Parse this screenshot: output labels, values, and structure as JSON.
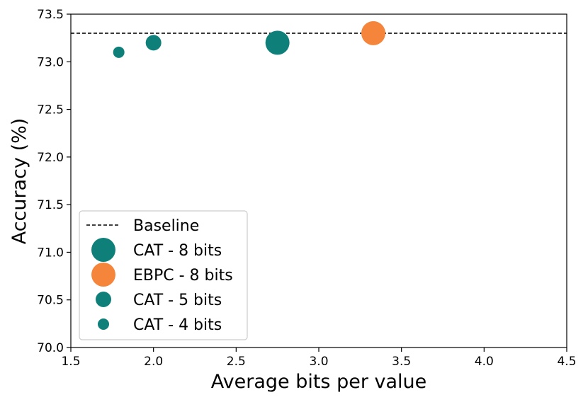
{
  "chart_data": {
    "type": "scatter",
    "title": "",
    "xlabel": "Average bits per value",
    "ylabel": "Accuracy (%)",
    "xlim": [
      1.5,
      4.5
    ],
    "ylim": [
      70.0,
      73.5
    ],
    "xticks": [
      1.5,
      2.0,
      2.5,
      3.0,
      3.5,
      4.0,
      4.5
    ],
    "xtick_labels": [
      "1.5",
      "2.0",
      "2.5",
      "3.0",
      "3.5",
      "4.0",
      "4.5"
    ],
    "yticks": [
      70.0,
      70.5,
      71.0,
      71.5,
      72.0,
      72.5,
      73.0,
      73.5
    ],
    "ytick_labels": [
      "70.0",
      "70.5",
      "71.0",
      "71.5",
      "72.0",
      "72.5",
      "73.0",
      "73.5"
    ],
    "grid": false,
    "baseline": {
      "name": "Baseline",
      "value": 73.3,
      "style": "dashed",
      "color": "#000000"
    },
    "series": [
      {
        "name": "CAT - 8 bits",
        "color": "#0f7f7a",
        "marker_size": "large",
        "points": [
          {
            "x": 2.75,
            "y": 73.2
          }
        ]
      },
      {
        "name": "EBPC - 8 bits",
        "color": "#f5853a",
        "marker_size": "large",
        "points": [
          {
            "x": 3.33,
            "y": 73.3
          }
        ]
      },
      {
        "name": "CAT - 5 bits",
        "color": "#0f7f7a",
        "marker_size": "medium",
        "points": [
          {
            "x": 2.0,
            "y": 73.2
          }
        ]
      },
      {
        "name": "CAT - 4 bits",
        "color": "#0f7f7a",
        "marker_size": "small",
        "points": [
          {
            "x": 1.79,
            "y": 73.1
          }
        ]
      }
    ],
    "legend": {
      "position": "lower-left",
      "entries": [
        "Baseline",
        "CAT - 8 bits",
        "EBPC - 8 bits",
        "CAT - 5 bits",
        "CAT - 4 bits"
      ]
    }
  }
}
